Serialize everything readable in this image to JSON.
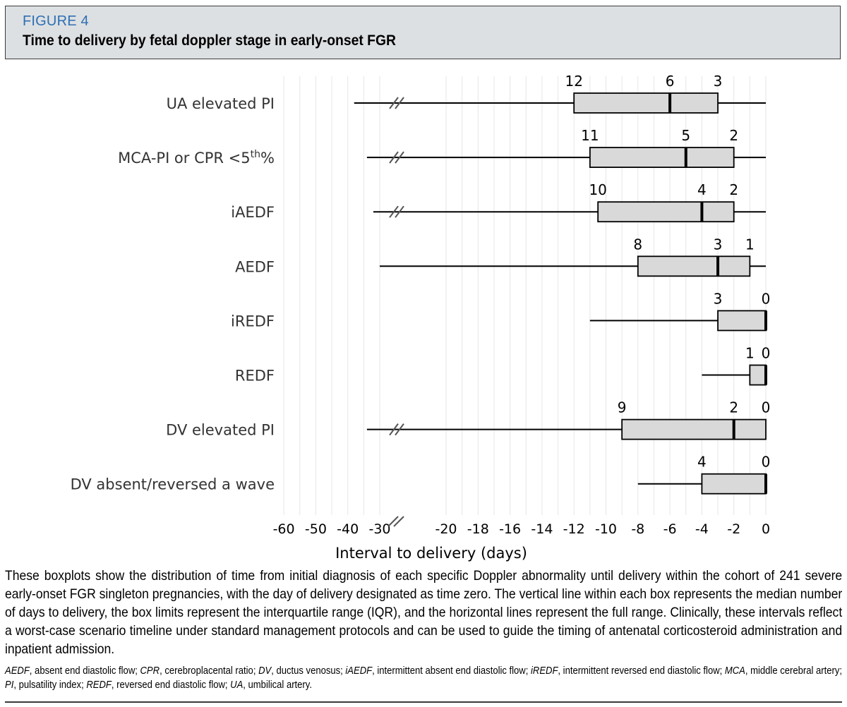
{
  "figure": {
    "label": "FIGURE 4",
    "title": "Time to delivery by fetal doppler stage in early-onset FGR"
  },
  "caption": "These boxplots show the distribution of time from initial diagnosis of each specific Doppler abnormality until delivery within the cohort of 241 severe early-onset FGR singleton pregnancies, with the day of delivery designated as time zero. The vertical line within each box represents the median number of days to delivery, the box limits represent the interquartile range (IQR), and the horizontal lines represent the full range. Clinically, these intervals reflect a worst-case scenario timeline under standard management protocols and can be used to guide the timing of antenatal corticosteroid administration and inpatient admission.",
  "abbreviations": [
    {
      "term": "AEDF",
      "def": ", absent end diastolic flow; "
    },
    {
      "term": "CPR",
      "def": ", cerebroplacental ratio; "
    },
    {
      "term": "DV",
      "def": ", ductus venosus; "
    },
    {
      "term": "iAEDF",
      "def": ", intermittent absent end diastolic flow; "
    },
    {
      "term": "iREDF",
      "def": ", intermittent reversed end diastolic flow; "
    },
    {
      "term": "MCA",
      "def": ", middle cerebral artery; "
    },
    {
      "term": "PI",
      "def": ", pulsatility index; "
    },
    {
      "term": "REDF",
      "def": ", reversed end diastolic flow; "
    },
    {
      "term": "UA",
      "def": ", umbilical artery."
    }
  ],
  "colors": {
    "header_bg": "#dde0e3",
    "figure_label": "#2e6fb3",
    "box_fill": "#d9d9d9",
    "grid": "#e6e6e6"
  },
  "chart_data": {
    "type": "boxplot",
    "orientation": "horizontal",
    "xlabel": "Interval to delivery (days)",
    "axis_break": "between -30 and -20",
    "x_ticks": [
      -60,
      -50,
      -40,
      -30,
      -20,
      -18,
      -16,
      -14,
      -12,
      -10,
      -8,
      -6,
      -4,
      -2,
      0
    ],
    "x_tick_labels": [
      "-60",
      "-50",
      "-40",
      "-30",
      "-20",
      "-18",
      "-16",
      "-14",
      "-12",
      "-10",
      "-8",
      "-6",
      "-4",
      "-2",
      "0"
    ],
    "grid": true,
    "series": [
      {
        "category": "UA elevated PI",
        "min": -38,
        "q1": -12,
        "median": -6,
        "q3": -3,
        "max": 0,
        "labels": [
          "12",
          "6",
          "3"
        ]
      },
      {
        "category": "MCA-PI or CPR <5th%",
        "min": -34,
        "q1": -11,
        "median": -5,
        "q3": -2,
        "max": 0,
        "labels": [
          "11",
          "5",
          "2"
        ]
      },
      {
        "category": "iAEDF",
        "min": -32,
        "q1": -10.5,
        "median": -4,
        "q3": -2,
        "max": 0,
        "labels": [
          "10",
          "4",
          "2"
        ]
      },
      {
        "category": "AEDF",
        "min": -30,
        "q1": -8,
        "median": -3,
        "q3": -1,
        "max": 0,
        "labels": [
          "8",
          "3",
          "1"
        ]
      },
      {
        "category": "iREDF",
        "min": -11,
        "q1": -3,
        "median": 0,
        "q3": 0,
        "max": 0,
        "labels": [
          "3",
          "0"
        ]
      },
      {
        "category": "REDF",
        "min": -4,
        "q1": -1,
        "median": 0,
        "q3": 0,
        "max": 0,
        "labels": [
          "1",
          "0"
        ]
      },
      {
        "category": "DV elevated PI",
        "min": -34,
        "q1": -9,
        "median": -2,
        "q3": 0,
        "max": 0,
        "labels": [
          "9",
          "2",
          "0"
        ]
      },
      {
        "category": "DV absent/reversed a wave",
        "min": -8,
        "q1": -4,
        "median": 0,
        "q3": 0,
        "max": 0,
        "labels": [
          "4",
          "0"
        ]
      }
    ]
  }
}
